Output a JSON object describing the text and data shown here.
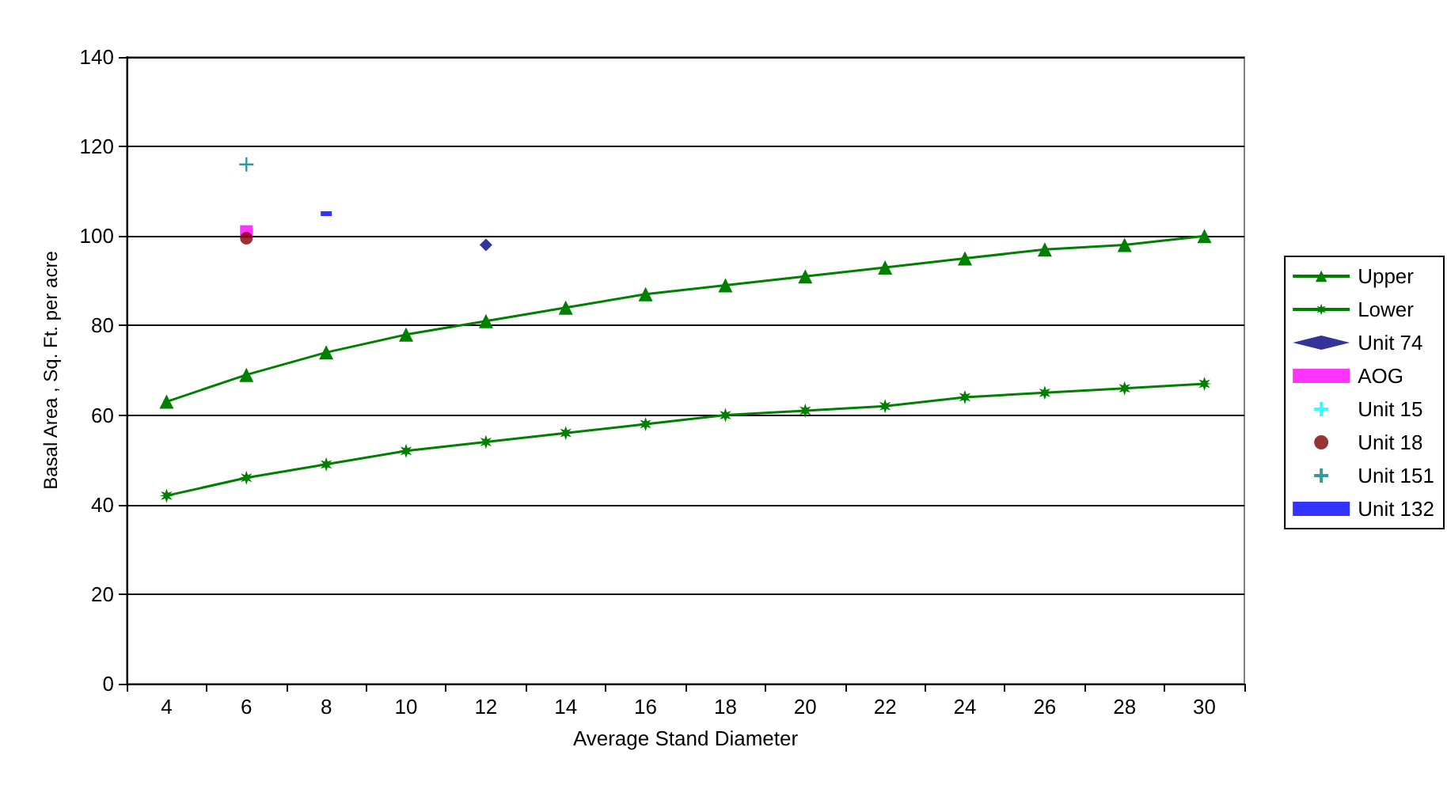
{
  "chart_data": {
    "type": "line",
    "xlabel": "Average Stand Diameter",
    "ylabel": "Basal Area , Sq. Ft. per acre",
    "categories": [
      "4",
      "6",
      "8",
      "10",
      "12",
      "14",
      "16",
      "18",
      "20",
      "22",
      "24",
      "26",
      "28",
      "30"
    ],
    "ylim": [
      0,
      140
    ],
    "yticks": [
      0,
      20,
      40,
      60,
      80,
      100,
      120,
      140
    ],
    "grid": "y",
    "legend": "right",
    "series": [
      {
        "name": "Upper",
        "color": "#008000",
        "marker": "triangle",
        "values": [
          63,
          69,
          74,
          78,
          81,
          84,
          87,
          89,
          91,
          93,
          95,
          97,
          98,
          100
        ]
      },
      {
        "name": "Lower",
        "color": "#008000",
        "marker": "star",
        "values": [
          42,
          46,
          49,
          52,
          54,
          56,
          58,
          60,
          61,
          62,
          64,
          65,
          66,
          67
        ]
      },
      {
        "name": "Unit 74",
        "type": "scatter",
        "color": "#000080",
        "marker": "diamond",
        "values": [
          null,
          null,
          null,
          null,
          98,
          null,
          null,
          null,
          null,
          null,
          null,
          null,
          null,
          null
        ]
      },
      {
        "name": "AOG",
        "type": "scatter",
        "color": "#ff00ff",
        "marker": "square",
        "values": [
          null,
          101,
          null,
          null,
          null,
          null,
          null,
          null,
          null,
          null,
          null,
          null,
          null,
          null
        ]
      },
      {
        "name": "Unit 15",
        "type": "scatter",
        "color": "#00ffff",
        "marker": "cross",
        "values": [
          null,
          null,
          null,
          null,
          null,
          null,
          null,
          null,
          null,
          null,
          null,
          null,
          null,
          null
        ]
      },
      {
        "name": "Unit 18",
        "type": "scatter",
        "color": "#800000",
        "marker": "circle",
        "values": [
          null,
          99.5,
          null,
          null,
          null,
          null,
          null,
          null,
          null,
          null,
          null,
          null,
          null,
          null
        ]
      },
      {
        "name": "Unit 151",
        "type": "scatter",
        "color": "#008080",
        "marker": "cross",
        "values": [
          null,
          116,
          null,
          null,
          null,
          null,
          null,
          null,
          null,
          null,
          null,
          null,
          null,
          null
        ]
      },
      {
        "name": "Unit 132",
        "type": "scatter",
        "color": "#0000ff",
        "marker": "square",
        "values": [
          null,
          null,
          105,
          null,
          null,
          null,
          null,
          null,
          null,
          null,
          null,
          null,
          null,
          null
        ]
      }
    ]
  }
}
